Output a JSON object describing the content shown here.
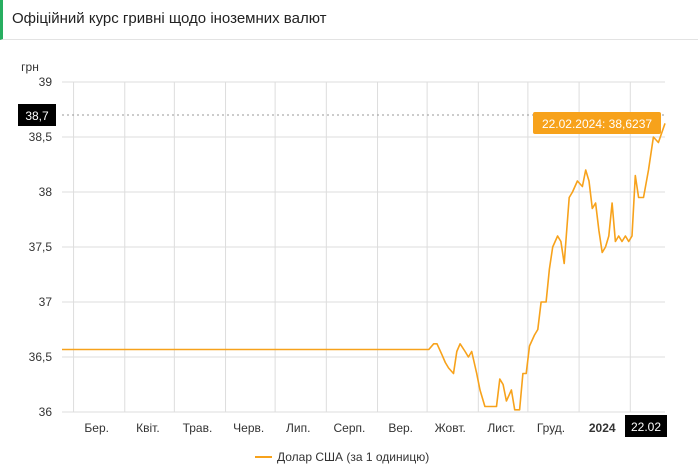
{
  "header": {
    "title": "Офіційний курс гривні щодо іноземних валют"
  },
  "colors": {
    "series": "#f7a21b",
    "grid": "#dddddd",
    "accent": "#27ae60",
    "badge_bg": "#000000"
  },
  "chart_data": {
    "type": "line",
    "ylabel": "грн",
    "ylim": [
      36,
      39
    ],
    "yticks": [
      36,
      36.5,
      37,
      37.5,
      38,
      38.5,
      39
    ],
    "ytick_labels": [
      "36",
      "36,5",
      "37",
      "37,5",
      "38",
      "38,5",
      "39"
    ],
    "xlim": [
      "2023-02-22",
      "2024-02-22"
    ],
    "x_ticks": [
      {
        "label": "Бер.",
        "date": "2023-03-15"
      },
      {
        "label": "Квіт.",
        "date": "2023-04-15"
      },
      {
        "label": "Трав.",
        "date": "2023-05-15"
      },
      {
        "label": "Черв.",
        "date": "2023-06-15"
      },
      {
        "label": "Лип.",
        "date": "2023-07-15"
      },
      {
        "label": "Серп.",
        "date": "2023-08-15"
      },
      {
        "label": "Вер.",
        "date": "2023-09-15"
      },
      {
        "label": "Жовт.",
        "date": "2023-10-15"
      },
      {
        "label": "Лист.",
        "date": "2023-11-15"
      },
      {
        "label": "Груд.",
        "date": "2023-12-15"
      },
      {
        "label": "2024",
        "date": "2024-01-15",
        "bold": true
      }
    ],
    "crosshair": {
      "y_label": "38,7",
      "x_label": "22.02",
      "tooltip": "22.02.2024: 38,6237"
    },
    "grid": true,
    "legend": {
      "position": "bottom",
      "label": "Долар США (за 1 одиницю)"
    },
    "series": [
      {
        "name": "Долар США (за 1 одиницю)",
        "points": [
          [
            "2023-02-22",
            36.5686
          ],
          [
            "2023-10-02",
            36.5686
          ],
          [
            "2023-10-05",
            36.62
          ],
          [
            "2023-10-07",
            36.62
          ],
          [
            "2023-10-10",
            36.52
          ],
          [
            "2023-10-12",
            36.45
          ],
          [
            "2023-10-14",
            36.4
          ],
          [
            "2023-10-17",
            36.35
          ],
          [
            "2023-10-19",
            36.55
          ],
          [
            "2023-10-21",
            36.62
          ],
          [
            "2023-10-24",
            36.55
          ],
          [
            "2023-10-26",
            36.5
          ],
          [
            "2023-10-28",
            36.55
          ],
          [
            "2023-10-31",
            36.35
          ],
          [
            "2023-11-02",
            36.2
          ],
          [
            "2023-11-05",
            36.05
          ],
          [
            "2023-11-09",
            36.05
          ],
          [
            "2023-11-12",
            36.05
          ],
          [
            "2023-11-14",
            36.3
          ],
          [
            "2023-11-16",
            36.25
          ],
          [
            "2023-11-18",
            36.1
          ],
          [
            "2023-11-21",
            36.2
          ],
          [
            "2023-11-23",
            36.02
          ],
          [
            "2023-11-26",
            36.02
          ],
          [
            "2023-11-28",
            36.35
          ],
          [
            "2023-11-30",
            36.35
          ],
          [
            "2023-12-02",
            36.6
          ],
          [
            "2023-12-05",
            36.7
          ],
          [
            "2023-12-07",
            36.75
          ],
          [
            "2023-12-09",
            37.0
          ],
          [
            "2023-12-12",
            37.0
          ],
          [
            "2023-12-14",
            37.3
          ],
          [
            "2023-12-16",
            37.5
          ],
          [
            "2023-12-19",
            37.6
          ],
          [
            "2023-12-21",
            37.55
          ],
          [
            "2023-12-23",
            37.35
          ],
          [
            "2023-12-26",
            37.95
          ],
          [
            "2023-12-28",
            38.0
          ],
          [
            "2023-12-31",
            38.1
          ],
          [
            "2024-01-03",
            38.05
          ],
          [
            "2024-01-05",
            38.2
          ],
          [
            "2024-01-07",
            38.1
          ],
          [
            "2024-01-09",
            37.85
          ],
          [
            "2024-01-11",
            37.9
          ],
          [
            "2024-01-13",
            37.65
          ],
          [
            "2024-01-15",
            37.45
          ],
          [
            "2024-01-17",
            37.5
          ],
          [
            "2024-01-19",
            37.6
          ],
          [
            "2024-01-21",
            37.9
          ],
          [
            "2024-01-23",
            37.55
          ],
          [
            "2024-01-25",
            37.6
          ],
          [
            "2024-01-27",
            37.55
          ],
          [
            "2024-01-29",
            37.6
          ],
          [
            "2024-01-31",
            37.55
          ],
          [
            "2024-02-02",
            37.6
          ],
          [
            "2024-02-04",
            38.15
          ],
          [
            "2024-02-06",
            37.95
          ],
          [
            "2024-02-09",
            37.95
          ],
          [
            "2024-02-12",
            38.2
          ],
          [
            "2024-02-15",
            38.5
          ],
          [
            "2024-02-18",
            38.45
          ],
          [
            "2024-02-22",
            38.6237
          ]
        ]
      }
    ]
  }
}
